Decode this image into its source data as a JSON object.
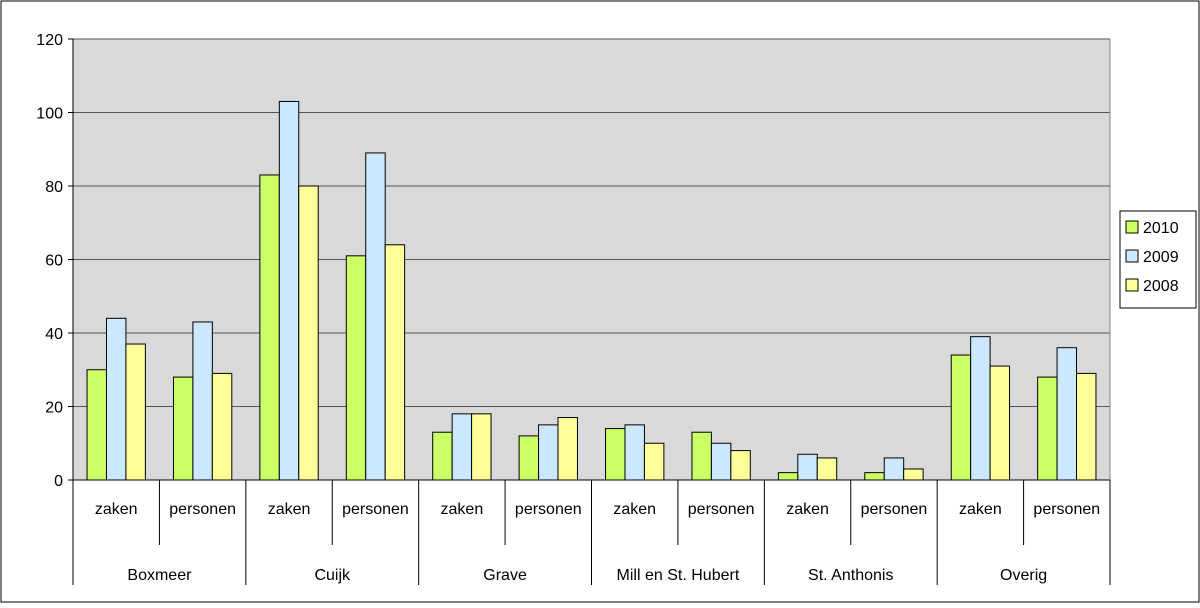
{
  "chart_data": {
    "type": "bar",
    "title": "",
    "xlabel": "",
    "ylabel": "",
    "ylim": [
      0,
      120
    ],
    "yticks": [
      0,
      20,
      40,
      60,
      80,
      100,
      120
    ],
    "grid": true,
    "legend_position": "right",
    "groups": [
      {
        "label": "Boxmeer",
        "subcategories": [
          "zaken",
          "personen"
        ]
      },
      {
        "label": "Cuijk",
        "subcategories": [
          "zaken",
          "personen"
        ]
      },
      {
        "label": "Grave",
        "subcategories": [
          "zaken",
          "personen"
        ]
      },
      {
        "label": "Mill en St. Hubert",
        "subcategories": [
          "zaken",
          "personen"
        ]
      },
      {
        "label": "St. Anthonis",
        "subcategories": [
          "zaken",
          "personen"
        ]
      },
      {
        "label": "Overig",
        "subcategories": [
          "zaken",
          "personen"
        ]
      }
    ],
    "categories": [
      "zaken",
      "personen",
      "zaken",
      "personen",
      "zaken",
      "personen",
      "zaken",
      "personen",
      "zaken",
      "personen",
      "zaken",
      "personen"
    ],
    "series": [
      {
        "name": "2010",
        "color": "#ccff66",
        "values": [
          30,
          28,
          83,
          61,
          13,
          12,
          14,
          13,
          2,
          2,
          34,
          28
        ]
      },
      {
        "name": "2009",
        "color": "#cce8ff",
        "values": [
          44,
          43,
          103,
          89,
          18,
          15,
          15,
          10,
          7,
          6,
          39,
          36
        ]
      },
      {
        "name": "2008",
        "color": "#ffff99",
        "values": [
          37,
          29,
          80,
          64,
          18,
          17,
          10,
          8,
          6,
          3,
          31,
          29
        ]
      }
    ]
  },
  "colors": {
    "plot_background": "#d9d9d9",
    "border": "#000000",
    "gridline": "#555555"
  }
}
